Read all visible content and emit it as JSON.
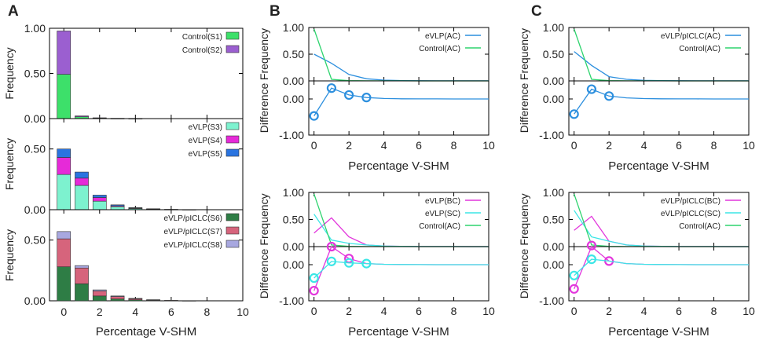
{
  "figure": {
    "panel_labels": [
      "A",
      "B",
      "C"
    ],
    "colors": {
      "S1": "#3de06a",
      "S2": "#9b5fd0",
      "S3": "#7df2cf",
      "S4": "#e62ad8",
      "S5": "#2a74e0",
      "S6": "#2e7d45",
      "S7": "#d6647c",
      "S8": "#a8a8e0",
      "AC_evlp": "#2c8fde",
      "AC_ctrl": "#2ed46e",
      "BC": "#e236dc",
      "SC": "#3ce6e6"
    }
  },
  "chart_data": [
    {
      "id": "A1",
      "type": "bar",
      "panel": "A",
      "stacked": true,
      "xlabel": "",
      "ylabel": "Frequency",
      "ylim": [
        0,
        1.0
      ],
      "yticks": [
        "0.00",
        "0.50",
        "1.00"
      ],
      "categories": [
        0,
        1,
        2,
        3,
        4,
        5,
        6,
        7,
        8,
        9
      ],
      "series": [
        {
          "name": "Control(S1)",
          "color": "#3de06a",
          "values": [
            0.49,
            0.02,
            0.005,
            0.002,
            0.001,
            0,
            0,
            0,
            0,
            0
          ]
        },
        {
          "name": "Control(S2)",
          "color": "#9b5fd0",
          "values": [
            0.48,
            0.01,
            0.004,
            0.001,
            0.001,
            0,
            0,
            0,
            0,
            0
          ]
        }
      ]
    },
    {
      "id": "A2",
      "type": "bar",
      "panel": "A",
      "stacked": true,
      "xlabel": "",
      "ylabel": "Frequency",
      "ylim": [
        0,
        0.75
      ],
      "yticks": [
        "0.00",
        "0.50"
      ],
      "categories": [
        0,
        1,
        2,
        3,
        4,
        5,
        6,
        7,
        8,
        9
      ],
      "series": [
        {
          "name": "eVLP(S3)",
          "color": "#7df2cf",
          "values": [
            0.29,
            0.2,
            0.07,
            0.025,
            0.01,
            0.005,
            0.002,
            0.001,
            0,
            0
          ]
        },
        {
          "name": "eVLP(S4)",
          "color": "#e62ad8",
          "values": [
            0.14,
            0.06,
            0.03,
            0.007,
            0.003,
            0.001,
            0,
            0,
            0,
            0
          ]
        },
        {
          "name": "eVLP(S5)",
          "color": "#2a74e0",
          "values": [
            0.07,
            0.05,
            0.02,
            0.008,
            0.004,
            0.002,
            0.001,
            0,
            0,
            0
          ]
        }
      ]
    },
    {
      "id": "A3",
      "type": "bar",
      "panel": "A",
      "stacked": true,
      "xlabel": "Percentage V-SHM",
      "ylabel": "Frequency",
      "ylim": [
        0,
        0.75
      ],
      "yticks": [
        "0.00",
        "0.50"
      ],
      "xticks": [
        "0",
        "2",
        "4",
        "6",
        "8",
        "10"
      ],
      "categories": [
        0,
        1,
        2,
        3,
        4,
        5,
        6,
        7,
        8,
        9
      ],
      "series": [
        {
          "name": "eVLP/pICLC(S6)",
          "color": "#2e7d45",
          "values": [
            0.28,
            0.14,
            0.04,
            0.015,
            0.008,
            0.004,
            0.002,
            0.001,
            0,
            0
          ]
        },
        {
          "name": "eVLP/pICLC(S7)",
          "color": "#d6647c",
          "values": [
            0.23,
            0.13,
            0.04,
            0.02,
            0.01,
            0.004,
            0.002,
            0.001,
            0,
            0
          ]
        },
        {
          "name": "eVLP/pICLC(S8)",
          "color": "#a8a8e0",
          "values": [
            0.06,
            0.02,
            0.01,
            0.005,
            0.002,
            0.001,
            0,
            0,
            0,
            0
          ]
        }
      ]
    },
    {
      "id": "B1",
      "type": "line",
      "panel": "B",
      "ylabel": "Frequency",
      "ylim": [
        0,
        1.0
      ],
      "xlim": [
        -0.3,
        10
      ],
      "yticks": [
        "0.00",
        "0.50",
        "1.00"
      ],
      "series": [
        {
          "name": "eVLP(AC)",
          "color": "#2c8fde",
          "x": [
            0,
            1,
            2,
            3,
            4,
            5,
            6,
            7,
            8,
            9,
            10
          ],
          "y": [
            0.5,
            0.33,
            0.12,
            0.04,
            0.015,
            0.006,
            0.003,
            0.002,
            0.001,
            0.001,
            0.001
          ]
        },
        {
          "name": "Control(AC)",
          "color": "#2ed46e",
          "x": [
            0,
            1,
            2,
            3,
            4,
            5,
            6,
            7,
            8,
            9,
            10
          ],
          "y": [
            0.97,
            0.03,
            0.005,
            0.002,
            0.001,
            0.001,
            0,
            0,
            0,
            0,
            0
          ]
        }
      ]
    },
    {
      "id": "B2",
      "type": "line",
      "panel": "B",
      "ylabel": "Difference",
      "ylim": [
        -1.0,
        0.5
      ],
      "xlim": [
        -0.3,
        10
      ],
      "xlabel": "Percentage V-SHM",
      "yticks": [
        "0.00",
        "-1.00"
      ],
      "xticks": [
        "0",
        "2",
        "4",
        "6",
        "8",
        "10"
      ],
      "series": [
        {
          "name": "eVLP(AC) - Control(AC)",
          "color": "#2c8fde",
          "x": [
            0,
            1,
            2,
            3,
            4,
            5,
            6,
            7,
            8,
            9,
            10
          ],
          "y": [
            -0.47,
            0.3,
            0.11,
            0.04,
            0.014,
            0.005,
            0.003,
            0.002,
            0.001,
            0.001,
            0.001
          ],
          "markers": [
            0,
            1,
            2,
            3
          ]
        }
      ]
    },
    {
      "id": "B3",
      "type": "line",
      "panel": "B",
      "ylabel": "Frequency",
      "ylim": [
        0,
        1.0
      ],
      "xlim": [
        -0.3,
        10
      ],
      "yticks": [
        "0.00",
        "0.50",
        "1.00"
      ],
      "series": [
        {
          "name": "eVLP(BC)",
          "color": "#e236dc",
          "x": [
            0,
            1,
            2,
            3,
            4,
            5,
            6,
            7,
            8,
            9,
            10
          ],
          "y": [
            0.25,
            0.53,
            0.18,
            0.03,
            0.01,
            0.004,
            0.002,
            0.001,
            0.001,
            0,
            0
          ]
        },
        {
          "name": "eVLP(SC)",
          "color": "#3ce6e6",
          "x": [
            0,
            1,
            2,
            3,
            4,
            5,
            6,
            7,
            8,
            9,
            10
          ],
          "y": [
            0.6,
            0.12,
            0.06,
            0.03,
            0.01,
            0.004,
            0.002,
            0.001,
            0.001,
            0,
            0
          ]
        },
        {
          "name": "Control(AC)",
          "color": "#2ed46e",
          "x": [
            0,
            1,
            2,
            3,
            4,
            5,
            6,
            7,
            8,
            9,
            10
          ],
          "y": [
            0.97,
            0.03,
            0.005,
            0.002,
            0.001,
            0.001,
            0,
            0,
            0,
            0,
            0
          ]
        }
      ]
    },
    {
      "id": "B4",
      "type": "line",
      "panel": "B",
      "ylabel": "Difference",
      "ylim": [
        -1.0,
        0.5
      ],
      "xlim": [
        -0.3,
        10
      ],
      "xlabel": "Percentage V-SHM",
      "yticks": [
        "0.00",
        "-1.00"
      ],
      "xticks": [
        "0",
        "2",
        "4",
        "6",
        "8",
        "10"
      ],
      "series": [
        {
          "name": "eVLP(BC) - Control(AC)",
          "color": "#e236dc",
          "x": [
            0,
            1,
            2,
            3,
            4,
            5,
            6,
            7,
            8,
            9,
            10
          ],
          "y": [
            -0.72,
            0.5,
            0.17,
            0.03,
            0.01,
            0.004,
            0.002,
            0.001,
            0.001,
            0,
            0
          ],
          "markers": [
            0,
            1,
            2
          ]
        },
        {
          "name": "eVLP(SC) - Control(AC)",
          "color": "#3ce6e6",
          "x": [
            0,
            1,
            2,
            3,
            4,
            5,
            6,
            7,
            8,
            9,
            10
          ],
          "y": [
            -0.37,
            0.09,
            0.05,
            0.03,
            0.01,
            0.004,
            0.002,
            0.001,
            0.001,
            0,
            0
          ],
          "markers": [
            0,
            1,
            2,
            3
          ]
        }
      ]
    },
    {
      "id": "C1",
      "type": "line",
      "panel": "C",
      "ylabel": "Frequency",
      "ylim": [
        0,
        1.0
      ],
      "xlim": [
        -0.3,
        10
      ],
      "yticks": [
        "0.00",
        "0.50",
        "1.00"
      ],
      "series": [
        {
          "name": "eVLP/pICLC(AC)",
          "color": "#2c8fde",
          "x": [
            0,
            1,
            2,
            3,
            4,
            5,
            6,
            7,
            8,
            9,
            10
          ],
          "y": [
            0.55,
            0.29,
            0.08,
            0.03,
            0.01,
            0.005,
            0.003,
            0.002,
            0.001,
            0.001,
            0.001
          ]
        },
        {
          "name": "Control(AC)",
          "color": "#2ed46e",
          "x": [
            0,
            1,
            2,
            3,
            4,
            5,
            6,
            7,
            8,
            9,
            10
          ],
          "y": [
            0.97,
            0.03,
            0.005,
            0.002,
            0.001,
            0.001,
            0,
            0,
            0,
            0,
            0
          ]
        }
      ]
    },
    {
      "id": "C2",
      "type": "line",
      "panel": "C",
      "ylabel": "Difference",
      "ylim": [
        -1.0,
        0.5
      ],
      "xlim": [
        -0.3,
        10
      ],
      "xlabel": "Percentage V-SHM",
      "yticks": [
        "0.00",
        "-1.00"
      ],
      "xticks": [
        "0",
        "2",
        "4",
        "6",
        "8",
        "10"
      ],
      "series": [
        {
          "name": "eVLP/pICLC(AC) - Control(AC)",
          "color": "#2c8fde",
          "x": [
            0,
            1,
            2,
            3,
            4,
            5,
            6,
            7,
            8,
            9,
            10
          ],
          "y": [
            -0.42,
            0.27,
            0.08,
            0.03,
            0.01,
            0.005,
            0.003,
            0.002,
            0.001,
            0.001,
            0.001
          ],
          "markers": [
            0,
            1,
            2
          ]
        }
      ]
    },
    {
      "id": "C3",
      "type": "line",
      "panel": "C",
      "ylabel": "Frequency",
      "ylim": [
        0,
        1.0
      ],
      "xlim": [
        -0.3,
        10
      ],
      "yticks": [
        "0.00",
        "0.50",
        "1.00"
      ],
      "series": [
        {
          "name": "eVLP/pICLC(BC)",
          "color": "#e236dc",
          "x": [
            0,
            1,
            2,
            3,
            4,
            5,
            6,
            7,
            8,
            9,
            10
          ],
          "y": [
            0.3,
            0.56,
            0.1,
            0.03,
            0.01,
            0.004,
            0.002,
            0.001,
            0.001,
            0,
            0
          ]
        },
        {
          "name": "eVLP/pICLC(SC)",
          "color": "#3ce6e6",
          "x": [
            0,
            1,
            2,
            3,
            4,
            5,
            6,
            7,
            8,
            9,
            10
          ],
          "y": [
            0.67,
            0.18,
            0.1,
            0.03,
            0.01,
            0.004,
            0.002,
            0.001,
            0.001,
            0,
            0
          ]
        },
        {
          "name": "Control(AC)",
          "color": "#2ed46e",
          "x": [
            0,
            1,
            2,
            3,
            4,
            5,
            6,
            7,
            8,
            9,
            10
          ],
          "y": [
            0.97,
            0.03,
            0.005,
            0.002,
            0.001,
            0.001,
            0,
            0,
            0,
            0,
            0
          ]
        }
      ]
    },
    {
      "id": "C4",
      "type": "line",
      "panel": "C",
      "ylabel": "Difference",
      "ylim": [
        -1.0,
        0.5
      ],
      "xlim": [
        -0.3,
        10
      ],
      "xlabel": "Percentage V-SHM",
      "yticks": [
        "0.00",
        "-1.00"
      ],
      "xticks": [
        "0",
        "2",
        "4",
        "6",
        "8",
        "10"
      ],
      "series": [
        {
          "name": "eVLP/pICLC(BC) - Control(AC)",
          "color": "#e236dc",
          "x": [
            0,
            1,
            2,
            3,
            4,
            5,
            6,
            7,
            8,
            9,
            10
          ],
          "y": [
            -0.67,
            0.53,
            0.1,
            0.03,
            0.01,
            0.004,
            0.002,
            0.001,
            0.001,
            0,
            0
          ],
          "markers": [
            0,
            1,
            2
          ]
        },
        {
          "name": "eVLP/pICLC(SC) - Control(AC)",
          "color": "#3ce6e6",
          "x": [
            0,
            1,
            2,
            3,
            4,
            5,
            6,
            7,
            8,
            9,
            10
          ],
          "y": [
            -0.3,
            0.15,
            0.1,
            0.03,
            0.01,
            0.004,
            0.002,
            0.001,
            0.001,
            0,
            0
          ],
          "markers": [
            0,
            1
          ]
        }
      ]
    }
  ]
}
